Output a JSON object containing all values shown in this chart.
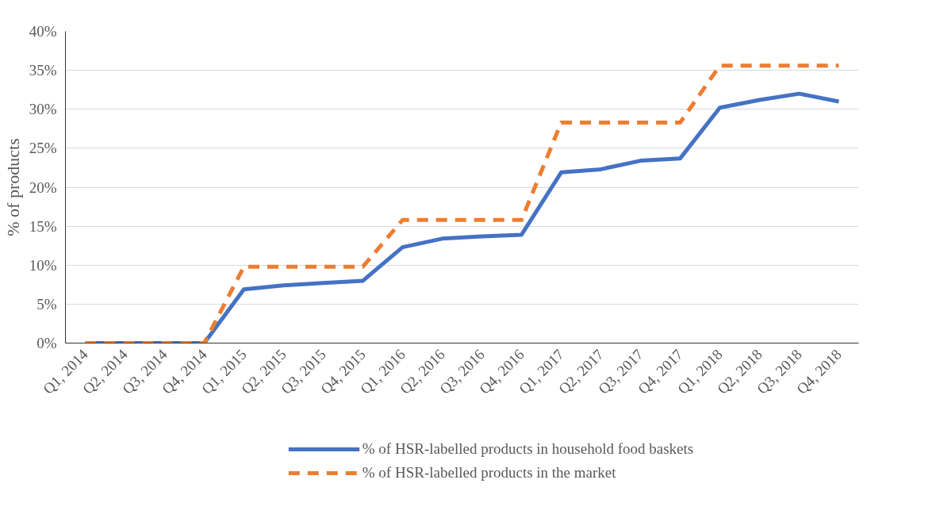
{
  "chart_data": {
    "type": "line",
    "ylabel": "% of products",
    "categories": [
      "Q1, 2014",
      "Q2, 2014",
      "Q3, 2014",
      "Q4, 2014",
      "Q1, 2015",
      "Q2, 2015",
      "Q3, 2015",
      "Q4, 2015",
      "Q1, 2016",
      "Q2, 2016",
      "Q3, 2016",
      "Q4, 2016",
      "Q1, 2017",
      "Q2, 2017",
      "Q3, 2017",
      "Q4, 2017",
      "Q1, 2018",
      "Q2, 2018",
      "Q3, 2018",
      "Q4, 2018"
    ],
    "series": [
      {
        "name": "% of HSR-labelled products in household food baskets",
        "color": "#4472c4",
        "line_style": "solid",
        "values": [
          0,
          0,
          0,
          0,
          6.9,
          7.4,
          7.7,
          8.0,
          12.3,
          13.4,
          13.7,
          13.9,
          21.9,
          22.3,
          23.4,
          23.7,
          30.2,
          31.2,
          32.0,
          31.0
        ]
      },
      {
        "name": "% of HSR-labelled products in the market",
        "color": "#ed7d31",
        "line_style": "dashed",
        "values": [
          0,
          0,
          0,
          0,
          9.8,
          9.8,
          9.8,
          9.8,
          15.8,
          15.8,
          15.8,
          15.8,
          28.3,
          28.3,
          28.3,
          28.3,
          35.6,
          35.6,
          35.6,
          35.6
        ]
      }
    ],
    "ylim": [
      0,
      40
    ],
    "yticks": [
      {
        "value": 0,
        "label": "0%"
      },
      {
        "value": 5,
        "label": "5%"
      },
      {
        "value": 10,
        "label": "10%"
      },
      {
        "value": 15,
        "label": "15%"
      },
      {
        "value": 20,
        "label": "20%"
      },
      {
        "value": 25,
        "label": "25%"
      },
      {
        "value": 30,
        "label": "30%"
      },
      {
        "value": 35,
        "label": "35%"
      },
      {
        "value": 40,
        "label": "40%"
      }
    ],
    "grid": "y",
    "legend": "bottom",
    "marker": "none"
  }
}
